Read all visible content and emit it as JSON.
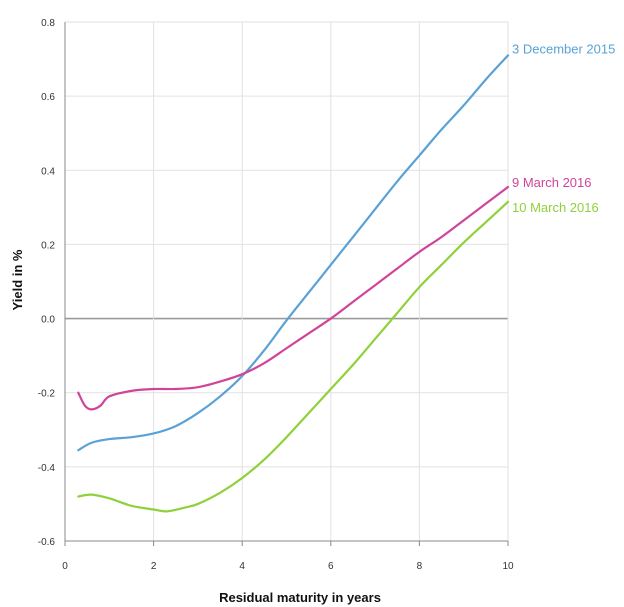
{
  "chart_data": {
    "type": "line",
    "title": "",
    "xlabel": "Residual maturity in years",
    "ylabel": "Yield in %",
    "xlim": [
      0,
      10
    ],
    "ylim": [
      -0.6,
      0.8
    ],
    "x_ticks": [
      "0",
      "2",
      "4",
      "6",
      "8",
      "10"
    ],
    "y_ticks": [
      "-0.6",
      "-0.4",
      "-0.2",
      "0.0",
      "0.2",
      "0.4",
      "0.6",
      "0.8"
    ],
    "grid": true,
    "legend": "inline-right",
    "series": [
      {
        "name": "3 December 2015",
        "color": "#5aa2d6",
        "x": [
          0.3,
          0.6,
          1,
          1.5,
          2,
          2.5,
          3,
          3.5,
          4,
          4.5,
          5,
          5.5,
          6,
          6.5,
          7,
          7.5,
          8,
          8.5,
          9,
          9.5,
          10
        ],
        "y": [
          -0.355,
          -0.335,
          -0.325,
          -0.32,
          -0.31,
          -0.29,
          -0.255,
          -0.21,
          -0.155,
          -0.085,
          -0.005,
          0.07,
          0.145,
          0.22,
          0.295,
          0.37,
          0.44,
          0.51,
          0.575,
          0.645,
          0.71
        ]
      },
      {
        "name": "9 March 2016",
        "color": "#d0449a",
        "x": [
          0.3,
          0.45,
          0.6,
          0.8,
          1,
          1.5,
          2,
          2.5,
          3,
          3.5,
          4,
          4.5,
          5,
          5.5,
          6,
          6.5,
          7,
          7.5,
          8,
          8.5,
          9,
          9.5,
          10
        ],
        "y": [
          -0.2,
          -0.235,
          -0.245,
          -0.235,
          -0.21,
          -0.195,
          -0.19,
          -0.19,
          -0.185,
          -0.17,
          -0.15,
          -0.12,
          -0.08,
          -0.04,
          0.0,
          0.045,
          0.09,
          0.135,
          0.18,
          0.22,
          0.265,
          0.31,
          0.355
        ]
      },
      {
        "name": "10 March 2016",
        "color": "#8fd13a",
        "x": [
          0.3,
          0.6,
          1,
          1.5,
          2,
          2.3,
          2.7,
          3,
          3.5,
          4,
          4.5,
          5,
          5.5,
          6,
          6.5,
          7,
          7.5,
          8,
          8.5,
          9,
          9.5,
          10
        ],
        "y": [
          -0.48,
          -0.475,
          -0.485,
          -0.505,
          -0.515,
          -0.52,
          -0.51,
          -0.5,
          -0.47,
          -0.43,
          -0.38,
          -0.32,
          -0.255,
          -0.19,
          -0.125,
          -0.055,
          0.015,
          0.085,
          0.145,
          0.205,
          0.26,
          0.315
        ]
      }
    ]
  }
}
